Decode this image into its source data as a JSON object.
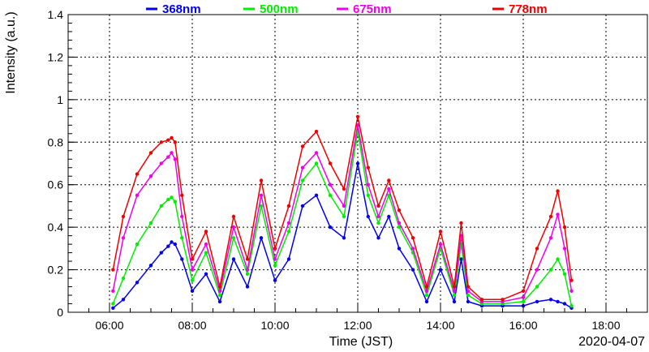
{
  "chart_data": {
    "type": "scatter",
    "title": "",
    "xlabel": "Time (JST)",
    "ylabel": "Intensity (a.u.)",
    "date": "2020-04-07",
    "xlim": [
      "05:00",
      "19:00"
    ],
    "ylim": [
      0,
      1.4
    ],
    "grid": true,
    "legend_placement": "top",
    "x_ticks": [
      "06:00",
      "08:00",
      "10:00",
      "12:00",
      "14:00",
      "16:00",
      "18:00"
    ],
    "y_ticks": [
      "0",
      "0.2",
      "0.4",
      "0.6",
      "0.8",
      "1",
      "1.2",
      "1.4"
    ],
    "series": [
      {
        "name": "368nm",
        "color": "#0000ee",
        "x": [
          "06:05",
          "06:20",
          "06:40",
          "07:00",
          "07:15",
          "07:25",
          "07:30",
          "07:35",
          "07:45",
          "08:00",
          "08:20",
          "08:40",
          "09:00",
          "09:20",
          "09:40",
          "10:00",
          "10:20",
          "10:40",
          "11:00",
          "11:20",
          "11:40",
          "12:00",
          "12:15",
          "12:30",
          "12:45",
          "13:00",
          "13:20",
          "13:40",
          "14:00",
          "14:20",
          "14:30",
          "14:40",
          "15:00",
          "15:30",
          "16:00",
          "16:20",
          "16:40",
          "16:50",
          "17:00",
          "17:10"
        ],
        "values": [
          0.02,
          0.06,
          0.14,
          0.22,
          0.28,
          0.31,
          0.33,
          0.32,
          0.25,
          0.1,
          0.18,
          0.05,
          0.25,
          0.12,
          0.35,
          0.15,
          0.25,
          0.5,
          0.55,
          0.4,
          0.35,
          0.7,
          0.45,
          0.35,
          0.45,
          0.3,
          0.2,
          0.05,
          0.2,
          0.05,
          0.25,
          0.05,
          0.03,
          0.03,
          0.03,
          0.05,
          0.06,
          0.05,
          0.04,
          0.02
        ]
      },
      {
        "name": "500nm",
        "color": "#00ee00",
        "x": [
          "06:05",
          "06:20",
          "06:40",
          "07:00",
          "07:15",
          "07:25",
          "07:30",
          "07:35",
          "07:45",
          "08:00",
          "08:20",
          "08:40",
          "09:00",
          "09:20",
          "09:40",
          "10:00",
          "10:20",
          "10:40",
          "11:00",
          "11:20",
          "11:40",
          "12:00",
          "12:15",
          "12:30",
          "12:45",
          "13:00",
          "13:20",
          "13:40",
          "14:00",
          "14:20",
          "14:30",
          "14:40",
          "15:00",
          "15:30",
          "16:00",
          "16:20",
          "16:40",
          "16:50",
          "17:00",
          "17:10"
        ],
        "values": [
          0.04,
          0.16,
          0.32,
          0.42,
          0.5,
          0.53,
          0.54,
          0.52,
          0.35,
          0.15,
          0.28,
          0.08,
          0.35,
          0.18,
          0.5,
          0.22,
          0.38,
          0.62,
          0.7,
          0.55,
          0.45,
          0.85,
          0.55,
          0.42,
          0.55,
          0.4,
          0.28,
          0.08,
          0.3,
          0.08,
          0.32,
          0.08,
          0.04,
          0.04,
          0.05,
          0.12,
          0.2,
          0.25,
          0.18,
          0.03
        ]
      },
      {
        "name": "675nm",
        "color": "#ee00ee",
        "x": [
          "06:05",
          "06:20",
          "06:40",
          "07:00",
          "07:15",
          "07:25",
          "07:30",
          "07:35",
          "07:45",
          "08:00",
          "08:20",
          "08:40",
          "09:00",
          "09:20",
          "09:40",
          "10:00",
          "10:20",
          "10:40",
          "11:00",
          "11:20",
          "11:40",
          "12:00",
          "12:15",
          "12:30",
          "12:45",
          "13:00",
          "13:20",
          "13:40",
          "14:00",
          "14:20",
          "14:30",
          "14:40",
          "15:00",
          "15:30",
          "16:00",
          "16:20",
          "16:40",
          "16:50",
          "17:00",
          "17:10"
        ],
        "values": [
          0.1,
          0.35,
          0.55,
          0.64,
          0.7,
          0.73,
          0.75,
          0.72,
          0.45,
          0.2,
          0.32,
          0.1,
          0.4,
          0.2,
          0.55,
          0.25,
          0.42,
          0.68,
          0.75,
          0.6,
          0.5,
          0.88,
          0.6,
          0.45,
          0.58,
          0.42,
          0.3,
          0.1,
          0.32,
          0.1,
          0.36,
          0.1,
          0.05,
          0.05,
          0.07,
          0.2,
          0.35,
          0.46,
          0.3,
          0.1
        ]
      },
      {
        "name": "778nm",
        "color": "#ee0000",
        "x": [
          "06:05",
          "06:20",
          "06:40",
          "07:00",
          "07:15",
          "07:25",
          "07:30",
          "07:35",
          "07:45",
          "08:00",
          "08:20",
          "08:40",
          "09:00",
          "09:20",
          "09:40",
          "10:00",
          "10:20",
          "10:40",
          "11:00",
          "11:20",
          "11:40",
          "12:00",
          "12:15",
          "12:30",
          "12:45",
          "13:00",
          "13:20",
          "13:40",
          "14:00",
          "14:20",
          "14:30",
          "14:40",
          "15:00",
          "15:30",
          "16:00",
          "16:20",
          "16:40",
          "16:50",
          "17:00",
          "17:10"
        ],
        "values": [
          0.2,
          0.45,
          0.65,
          0.75,
          0.8,
          0.81,
          0.82,
          0.8,
          0.55,
          0.25,
          0.38,
          0.12,
          0.45,
          0.25,
          0.62,
          0.3,
          0.5,
          0.78,
          0.85,
          0.7,
          0.58,
          0.92,
          0.68,
          0.5,
          0.62,
          0.48,
          0.35,
          0.12,
          0.38,
          0.12,
          0.42,
          0.12,
          0.06,
          0.06,
          0.1,
          0.3,
          0.45,
          0.57,
          0.4,
          0.15
        ]
      }
    ]
  }
}
